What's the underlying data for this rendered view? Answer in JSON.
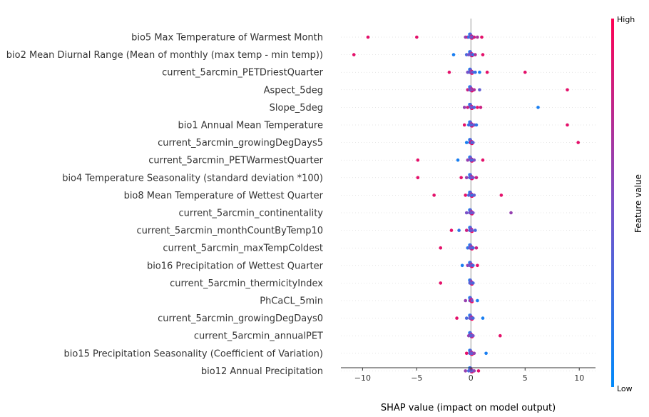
{
  "chart_data": {
    "type": "scatter",
    "subtype": "shap-beeswarm",
    "xlabel": "SHAP value (impact on model output)",
    "xlim": [
      -12,
      11.5
    ],
    "xticks": [
      -10,
      -5,
      0,
      5,
      10
    ],
    "colorbar": {
      "label": "Feature value",
      "high": "High",
      "low": "Low",
      "low_color": "#008afb",
      "high_color": "#ff0052"
    },
    "features": [
      {
        "name": "bio5 Max Temperature of Warmest Month",
        "points": [
          [
            -9.5,
            0.9
          ],
          [
            -5.0,
            0.9
          ],
          [
            -0.5,
            0.6
          ],
          [
            -0.3,
            0.8
          ],
          [
            -0.2,
            0.2
          ],
          [
            0.0,
            0.5
          ],
          [
            0.1,
            0.6
          ],
          [
            0.2,
            0.3
          ],
          [
            0.3,
            0.8
          ],
          [
            0.6,
            0.7
          ],
          [
            1.0,
            0.9
          ]
        ]
      },
      {
        "name": "bio2 Mean Diurnal Range (Mean of monthly (max temp - min temp))",
        "points": [
          [
            -10.8,
            0.9
          ],
          [
            -1.6,
            0.1
          ],
          [
            -0.4,
            0.3
          ],
          [
            -0.2,
            0.5
          ],
          [
            0.0,
            0.4
          ],
          [
            0.1,
            0.6
          ],
          [
            0.2,
            0.2
          ],
          [
            0.4,
            0.7
          ],
          [
            1.1,
            0.9
          ]
        ]
      },
      {
        "name": "current_5arcmin_PETDriestQuarter",
        "points": [
          [
            -2.0,
            0.9
          ],
          [
            -0.3,
            0.5
          ],
          [
            -0.1,
            0.3
          ],
          [
            0.0,
            0.6
          ],
          [
            0.2,
            0.4
          ],
          [
            0.4,
            0.2
          ],
          [
            0.8,
            0.1
          ],
          [
            1.5,
            0.9
          ],
          [
            5.0,
            0.9
          ]
        ]
      },
      {
        "name": "Aspect_5deg",
        "points": [
          [
            -0.3,
            0.8
          ],
          [
            -0.1,
            0.4
          ],
          [
            0.0,
            0.5
          ],
          [
            0.1,
            0.6
          ],
          [
            0.3,
            0.7
          ],
          [
            0.8,
            0.4
          ],
          [
            8.9,
            0.9
          ]
        ]
      },
      {
        "name": "Slope_5deg",
        "points": [
          [
            -0.6,
            0.6
          ],
          [
            -0.3,
            0.8
          ],
          [
            0.0,
            0.4
          ],
          [
            0.1,
            0.5
          ],
          [
            0.3,
            0.3
          ],
          [
            0.6,
            0.9
          ],
          [
            0.9,
            0.8
          ],
          [
            6.2,
            0.1
          ]
        ]
      },
      {
        "name": "bio1 Annual Mean Temperature",
        "points": [
          [
            -0.6,
            0.9
          ],
          [
            -0.2,
            0.2
          ],
          [
            0.0,
            0.4
          ],
          [
            0.1,
            0.3
          ],
          [
            0.3,
            0.5
          ],
          [
            0.5,
            0.2
          ],
          [
            8.9,
            0.9
          ]
        ]
      },
      {
        "name": "current_5arcmin_growingDegDays5",
        "points": [
          [
            -0.4,
            0.1
          ],
          [
            -0.1,
            0.3
          ],
          [
            0.0,
            0.5
          ],
          [
            0.0,
            0.9
          ],
          [
            0.1,
            0.2
          ],
          [
            0.2,
            0.4
          ],
          [
            9.9,
            0.9
          ]
        ]
      },
      {
        "name": "current_5arcmin_PETWarmestQuarter",
        "points": [
          [
            -4.9,
            0.9
          ],
          [
            -1.2,
            0.1
          ],
          [
            -0.3,
            0.6
          ],
          [
            0.0,
            0.4
          ],
          [
            0.1,
            0.3
          ],
          [
            0.3,
            0.5
          ],
          [
            1.1,
            0.9
          ]
        ]
      },
      {
        "name": "bio4 Temperature Seasonality (standard deviation *100)",
        "points": [
          [
            -4.9,
            0.9
          ],
          [
            -0.9,
            0.9
          ],
          [
            -0.4,
            0.6
          ],
          [
            -0.1,
            0.3
          ],
          [
            0.0,
            0.4
          ],
          [
            0.2,
            0.5
          ],
          [
            0.5,
            0.8
          ]
        ]
      },
      {
        "name": "bio8 Mean Temperature of Wettest Quarter",
        "points": [
          [
            -3.4,
            0.9
          ],
          [
            -0.5,
            0.9
          ],
          [
            -0.2,
            0.3
          ],
          [
            0.0,
            0.5
          ],
          [
            0.1,
            0.2
          ],
          [
            0.3,
            0.4
          ],
          [
            2.8,
            0.9
          ]
        ]
      },
      {
        "name": "current_5arcmin_continentality",
        "points": [
          [
            -0.4,
            0.5
          ],
          [
            -0.1,
            0.4
          ],
          [
            0.0,
            0.6
          ],
          [
            0.1,
            0.3
          ],
          [
            0.2,
            0.5
          ],
          [
            3.7,
            0.6
          ]
        ]
      },
      {
        "name": "current_5arcmin_monthCountByTemp10",
        "points": [
          [
            -1.8,
            0.9
          ],
          [
            -1.1,
            0.2
          ],
          [
            -0.4,
            0.8
          ],
          [
            -0.1,
            0.3
          ],
          [
            0.0,
            0.4
          ],
          [
            0.1,
            0.5
          ],
          [
            0.4,
            0.3
          ]
        ]
      },
      {
        "name": "current_5arcmin_maxTempColdest",
        "points": [
          [
            -2.8,
            0.9
          ],
          [
            -0.3,
            0.2
          ],
          [
            -0.1,
            0.5
          ],
          [
            0.0,
            0.4
          ],
          [
            0.2,
            0.3
          ],
          [
            0.5,
            0.8
          ]
        ]
      },
      {
        "name": "bio16 Precipitation of Wettest Quarter",
        "points": [
          [
            -0.8,
            0.1
          ],
          [
            -0.3,
            0.6
          ],
          [
            -0.1,
            0.4
          ],
          [
            0.0,
            0.5
          ],
          [
            0.2,
            0.3
          ],
          [
            0.6,
            0.9
          ]
        ]
      },
      {
        "name": "current_5arcmin_thermicityIndex",
        "points": [
          [
            -2.8,
            0.9
          ],
          [
            -0.1,
            0.4
          ],
          [
            0.0,
            0.3
          ],
          [
            0.1,
            0.5
          ],
          [
            0.2,
            0.3
          ]
        ]
      },
      {
        "name": "PhCaCL_5min",
        "points": [
          [
            -0.5,
            0.6
          ],
          [
            -0.1,
            0.4
          ],
          [
            0.0,
            0.9
          ],
          [
            0.1,
            0.5
          ],
          [
            0.6,
            0.1
          ]
        ]
      },
      {
        "name": "current_5arcmin_growingDegDays0",
        "points": [
          [
            -1.3,
            0.9
          ],
          [
            -0.4,
            0.3
          ],
          [
            -0.1,
            0.4
          ],
          [
            0.0,
            0.5
          ],
          [
            0.2,
            0.3
          ],
          [
            1.1,
            0.1
          ]
        ]
      },
      {
        "name": "current_5arcmin_annualPET",
        "points": [
          [
            -0.2,
            0.6
          ],
          [
            0.0,
            0.4
          ],
          [
            0.1,
            0.3
          ],
          [
            0.2,
            0.5
          ],
          [
            2.7,
            0.9
          ]
        ]
      },
      {
        "name": "bio15 Precipitation Seasonality (Coefficient of Variation)",
        "points": [
          [
            -0.4,
            0.9
          ],
          [
            -0.1,
            0.3
          ],
          [
            0.0,
            0.5
          ],
          [
            0.1,
            0.4
          ],
          [
            0.3,
            0.6
          ],
          [
            1.4,
            0.1
          ]
        ]
      },
      {
        "name": "bio12 Annual Precipitation",
        "points": [
          [
            -0.5,
            0.6
          ],
          [
            -0.2,
            0.3
          ],
          [
            0.0,
            0.5
          ],
          [
            0.1,
            0.4
          ],
          [
            0.3,
            0.6
          ],
          [
            0.7,
            0.9
          ]
        ]
      }
    ]
  }
}
